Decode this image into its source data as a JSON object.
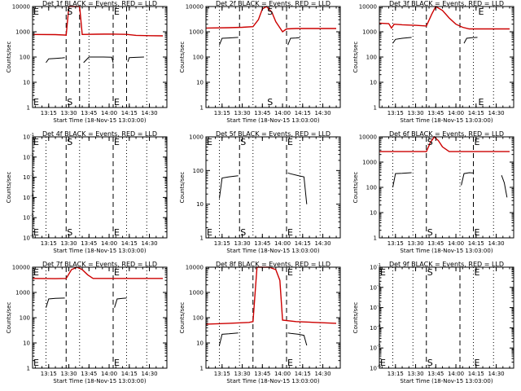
{
  "colors": {
    "events": "#000000",
    "lld": "#cc0000",
    "axes": "#000000",
    "background": "#ffffff"
  },
  "chart_data": [
    {
      "type": "line",
      "title": "Det 1f BLACK = Events, RED = LLD",
      "xlabel": "Start Time (18-Nov-15 13:03:00)",
      "ylabel": "Counts/sec",
      "x_ticks": [
        "13:15",
        "13:30",
        "13:45",
        "14:00",
        "14:15",
        "14:30"
      ],
      "y_ticks": [
        "1",
        "10",
        "100",
        "1000",
        "10000"
      ],
      "y_scale": "log",
      "xlim": [
        "13:03",
        "14:43"
      ],
      "ylim": [
        1,
        10000
      ],
      "markers": [
        {
          "label": "E",
          "x": "13:03"
        },
        {
          "label": "S",
          "x": "13:28"
        },
        {
          "label": "E",
          "x": "14:03"
        }
      ],
      "dashed_x": [
        "13:28",
        "13:38",
        "14:03",
        "14:13"
      ],
      "dotted_x": [
        "13:45",
        "14:28"
      ],
      "series": [
        {
          "color": "red",
          "x": [
            "13:03",
            "13:20",
            "13:28",
            "13:30",
            "13:38",
            "13:40",
            "13:50",
            "14:00",
            "14:13",
            "14:20",
            "14:30",
            "14:40"
          ],
          "y": [
            780,
            770,
            740,
            10000,
            10000,
            780,
            800,
            810,
            790,
            720,
            700,
            690
          ]
        },
        {
          "color": "black",
          "segments": [
            {
              "x": [
                "13:13",
                "13:15",
                "13:20",
                "13:25",
                "13:27"
              ],
              "y": [
                60,
                85,
                88,
                92,
                95
              ]
            },
            {
              "x": [
                "13:41",
                "13:45",
                "13:55",
                "14:02",
                "14:03"
              ],
              "y": [
                60,
                100,
                100,
                98,
                60
              ]
            },
            {
              "x": [
                "14:14",
                "14:15",
                "14:20",
                "14:26"
              ],
              "y": [
                65,
                95,
                97,
                100
              ]
            }
          ]
        }
      ]
    },
    {
      "type": "line",
      "title": "Det 2f BLACK = Events, RED = LLD",
      "xlabel": "Start Time (18-Nov-15 13:03:00)",
      "ylabel": "Counts/sec",
      "x_ticks": [
        "13:15",
        "13:30",
        "13:45",
        "14:00",
        "14:15",
        "14:30"
      ],
      "y_ticks": [
        "1",
        "10",
        "100",
        "1000",
        "10000"
      ],
      "y_scale": "log",
      "xlim": [
        "13:03",
        "14:43"
      ],
      "ylim": [
        1,
        10000
      ],
      "markers": [
        {
          "label": "S",
          "x": "13:48"
        }
      ],
      "dashed_x": [
        "13:28",
        "14:03"
      ],
      "dotted_x": [
        "13:13",
        "13:38",
        "14:13",
        "14:28"
      ],
      "series": [
        {
          "color": "red",
          "x": [
            "13:03",
            "13:20",
            "13:30",
            "13:38",
            "13:42",
            "13:45",
            "13:48",
            "13:52",
            "13:55",
            "14:00",
            "14:03",
            "14:10",
            "14:40"
          ],
          "y": [
            1400,
            1450,
            1500,
            1600,
            3000,
            8000,
            10000,
            6000,
            2500,
            1000,
            1300,
            1350,
            1350
          ]
        },
        {
          "color": "black",
          "segments": [
            {
              "x": [
                "13:13",
                "13:15",
                "13:20",
                "13:27"
              ],
              "y": [
                300,
                550,
                570,
                600
              ]
            },
            {
              "x": [
                "14:04",
                "14:06",
                "14:10",
                "14:13"
              ],
              "y": [
                300,
                550,
                570,
                590
              ]
            }
          ]
        }
      ]
    },
    {
      "type": "line",
      "title": "Det 3f BLACK = Events, RED = LLD",
      "xlabel": "Start Time (18-Nov-15 13:03:00)",
      "ylabel": "Counts/sec",
      "x_ticks": [
        "13:15",
        "13:30",
        "13:45",
        "14:00",
        "14:15",
        "14:30"
      ],
      "y_ticks": [
        "1",
        "10",
        "100",
        "1000",
        "10000"
      ],
      "y_scale": "log",
      "xlim": [
        "13:03",
        "14:43"
      ],
      "ylim": [
        1,
        10000
      ],
      "markers": [
        {
          "label": "E",
          "x": "14:16"
        }
      ],
      "dashed_x": [
        "13:38",
        "14:03"
      ],
      "dotted_x": [
        "13:13",
        "13:28",
        "14:13",
        "14:28"
      ],
      "series": [
        {
          "color": "red",
          "x": [
            "13:03",
            "13:10",
            "13:12",
            "13:14",
            "13:20",
            "13:30",
            "13:38",
            "13:42",
            "13:45",
            "13:50",
            "13:55",
            "14:00",
            "14:05",
            "14:10",
            "14:40"
          ],
          "y": [
            2200,
            2100,
            1400,
            2000,
            1900,
            1800,
            1700,
            5000,
            10000,
            7000,
            3500,
            2000,
            1500,
            1300,
            1300
          ]
        },
        {
          "color": "black",
          "segments": [
            {
              "x": [
                "13:13",
                "13:15",
                "13:20",
                "13:27"
              ],
              "y": [
                350,
                500,
                550,
                600
              ]
            },
            {
              "x": [
                "14:06",
                "14:08",
                "14:12",
                "14:16"
              ],
              "y": [
                350,
                550,
                580,
                600
              ]
            }
          ]
        }
      ]
    },
    {
      "type": "line",
      "title": "Det 4f BLACK = Events, RED = LLD",
      "xlabel": "Start Time (18-Nov-15 13:03:00)",
      "ylabel": "Counts/sec",
      "x_ticks": [
        "13:15",
        "13:30",
        "13:45",
        "14:00",
        "14:15",
        "14:30"
      ],
      "y_ticks": [
        "10",
        "10",
        "10",
        "10",
        "10",
        "10"
      ],
      "y_exponents": [
        "-6",
        "-5",
        "-4",
        "-3",
        "-2",
        "-1"
      ],
      "y_scale": "log",
      "xlim": [
        "13:03",
        "14:43"
      ],
      "ylim": [
        1e-06,
        0.1
      ],
      "markers": [
        {
          "label": "E",
          "x": "13:03"
        },
        {
          "label": "S",
          "x": "13:28"
        },
        {
          "label": "E",
          "x": "14:03"
        }
      ],
      "dashed_x": [
        "13:28",
        "14:03"
      ],
      "dotted_x": [
        "13:13",
        "13:38",
        "14:13",
        "14:28"
      ],
      "series": []
    },
    {
      "type": "line",
      "title": "Det 5f BLACK = Events, RED = LLD",
      "xlabel": "Start Time (18-Nov-15 13:03:00)",
      "ylabel": "Counts/sec",
      "x_ticks": [
        "13:15",
        "13:30",
        "13:45",
        "14:00",
        "14:15",
        "14:30"
      ],
      "y_ticks": [
        "1",
        "10",
        "100",
        "1000"
      ],
      "y_scale": "log",
      "xlim": [
        "13:03",
        "14:43"
      ],
      "ylim": [
        1,
        1000
      ],
      "markers": [
        {
          "label": "E",
          "x": "13:03"
        },
        {
          "label": "S",
          "x": "13:28"
        },
        {
          "label": "E",
          "x": "14:03"
        }
      ],
      "dashed_x": [
        "13:28",
        "14:03"
      ],
      "dotted_x": [
        "13:13",
        "13:38",
        "14:13",
        "14:28"
      ],
      "series": [
        {
          "color": "black",
          "segments": [
            {
              "x": [
                "13:13",
                "13:15",
                "13:20",
                "13:27"
              ],
              "y": [
                15,
                60,
                65,
                70
              ]
            },
            {
              "x": [
                "14:04",
                "14:06",
                "14:12",
                "14:16",
                "14:18"
              ],
              "y": [
                85,
                80,
                70,
                65,
                10
              ]
            }
          ]
        }
      ]
    },
    {
      "type": "line",
      "title": "Det 6f BLACK = Events, RED = LLD",
      "xlabel": "Start Time (18-Nov-15 13:03:00)",
      "ylabel": "Counts/sec",
      "x_ticks": [
        "13:15",
        "13:30",
        "13:45",
        "14:00",
        "14:15",
        "14:30"
      ],
      "y_ticks": [
        "1",
        "10",
        "100",
        "1000",
        "10000"
      ],
      "y_scale": "log",
      "xlim": [
        "13:03",
        "14:43"
      ],
      "ylim": [
        1,
        10000
      ],
      "markers": [
        {
          "label": "S",
          "x": "13:38"
        },
        {
          "label": "E",
          "x": "14:13"
        }
      ],
      "dashed_x": [
        "13:38",
        "14:13"
      ],
      "dotted_x": [
        "13:13",
        "13:28",
        "14:03",
        "14:28"
      ],
      "series": [
        {
          "color": "red",
          "x": [
            "13:03",
            "13:30",
            "13:38",
            "13:41",
            "13:44",
            "13:47",
            "13:50",
            "13:55",
            "14:40"
          ],
          "y": [
            2600,
            2600,
            2600,
            6000,
            10000,
            7000,
            4000,
            2600,
            2600
          ]
        },
        {
          "color": "black",
          "segments": [
            {
              "x": [
                "13:13",
                "13:15",
                "13:20",
                "13:27"
              ],
              "y": [
                100,
                350,
                360,
                380
              ]
            },
            {
              "x": [
                "14:04",
                "14:06",
                "14:10",
                "14:13"
              ],
              "y": [
                120,
                350,
                380,
                370
              ]
            },
            {
              "x": [
                "14:34",
                "14:36",
                "14:38"
              ],
              "y": [
                300,
                150,
                40
              ]
            }
          ]
        }
      ]
    },
    {
      "type": "line",
      "title": "Det 7f BLACK = Events, RED = LLD",
      "xlabel": "Start Time (18-Nov-15 13:03:00)",
      "ylabel": "Counts/sec",
      "x_ticks": [
        "13:15",
        "13:30",
        "13:45",
        "14:00",
        "14:15",
        "14:30"
      ],
      "y_ticks": [
        "1",
        "10",
        "100",
        "1000",
        "10000"
      ],
      "y_scale": "log",
      "xlim": [
        "13:03",
        "14:43"
      ],
      "ylim": [
        1,
        10000
      ],
      "markers": [
        {
          "label": "E",
          "x": "13:03"
        },
        {
          "label": "E",
          "x": "14:03"
        }
      ],
      "dashed_x": [
        "13:28",
        "14:03"
      ],
      "dotted_x": [
        "13:13",
        "13:38",
        "14:13",
        "14:28"
      ],
      "series": [
        {
          "color": "red",
          "x": [
            "13:03",
            "13:20",
            "13:28",
            "13:32",
            "13:36",
            "13:40",
            "13:44",
            "13:48",
            "14:40"
          ],
          "y": [
            3600,
            3500,
            3600,
            8000,
            10000,
            8000,
            5000,
            3600,
            3600
          ]
        },
        {
          "color": "black",
          "segments": [
            {
              "x": [
                "13:13",
                "13:15",
                "13:20",
                "13:27"
              ],
              "y": [
                250,
                550,
                580,
                600
              ]
            },
            {
              "x": [
                "14:04",
                "14:06",
                "14:10",
                "14:13"
              ],
              "y": [
                250,
                550,
                580,
                600
              ]
            }
          ]
        }
      ]
    },
    {
      "type": "line",
      "title": "Det 8f BLACK = Events, RED = LLD",
      "xlabel": "Start Time (18-Nov-15 13:03:00)",
      "ylabel": "Counts/sec",
      "x_ticks": [
        "13:15",
        "13:30",
        "13:45",
        "14:00",
        "14:15",
        "14:30"
      ],
      "y_ticks": [
        "1",
        "10",
        "100",
        "1000",
        "10000"
      ],
      "y_scale": "log",
      "xlim": [
        "13:03",
        "14:43"
      ],
      "ylim": [
        1,
        10000
      ],
      "markers": [
        {
          "label": "E",
          "x": "14:03"
        }
      ],
      "dashed_x": [
        "13:38",
        "14:03"
      ],
      "dotted_x": [
        "13:13",
        "13:28",
        "14:13",
        "14:28"
      ],
      "series": [
        {
          "color": "red",
          "x": [
            "13:03",
            "13:20",
            "13:35",
            "13:38",
            "13:41",
            "13:50",
            "13:55",
            "13:58",
            "14:00",
            "14:10",
            "14:40"
          ],
          "y": [
            55,
            60,
            65,
            70,
            10000,
            10000,
            8000,
            3000,
            80,
            70,
            60
          ]
        },
        {
          "color": "black",
          "segments": [
            {
              "x": [
                "13:13",
                "13:15",
                "13:20",
                "13:27"
              ],
              "y": [
                8,
                22,
                23,
                25
              ]
            },
            {
              "x": [
                "14:04",
                "14:06",
                "14:12",
                "14:16",
                "14:18"
              ],
              "y": [
                25,
                24,
                22,
                20,
                8
              ]
            }
          ]
        }
      ]
    },
    {
      "type": "line",
      "title": "Det 9f BLACK = Events, RED = LLD",
      "xlabel": "Start Time (18-Nov-15 13:03:00)",
      "ylabel": "Counts/sec",
      "x_ticks": [
        "13:15",
        "13:30",
        "13:45",
        "14:00",
        "14:15",
        "14:30"
      ],
      "y_ticks": [
        "10",
        "10",
        "10",
        "10",
        "10",
        "10"
      ],
      "y_exponents": [
        "-6",
        "-5",
        "-4",
        "-3",
        "-2",
        "-1"
      ],
      "y_scale": "log",
      "xlim": [
        "13:03",
        "14:43"
      ],
      "ylim": [
        1e-06,
        0.1
      ],
      "markers": [
        {
          "label": "E",
          "x": "13:03"
        },
        {
          "label": "S",
          "x": "13:38"
        },
        {
          "label": "E",
          "x": "14:13"
        }
      ],
      "dashed_x": [
        "13:38",
        "14:03"
      ],
      "dotted_x": [
        "13:13",
        "13:28",
        "14:13",
        "14:28"
      ],
      "series": []
    }
  ]
}
